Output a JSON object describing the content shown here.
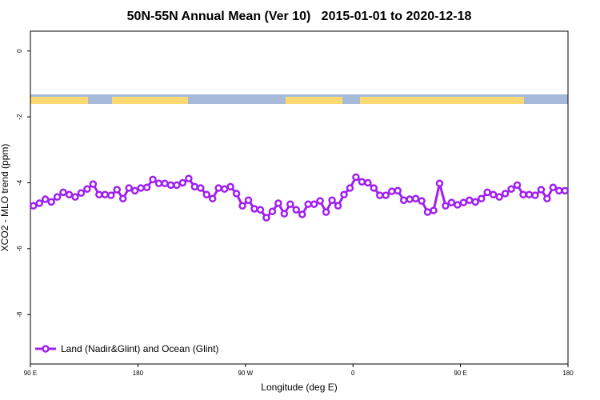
{
  "chart_data": {
    "type": "line",
    "title": "50N-55N Annual Mean (Ver 10)   2015-01-01 to 2020-12-18",
    "x_label": "Longitude (deg E)",
    "y_label": "XCO2 - MLO trend (ppm)",
    "xlim": [
      90,
      540
    ],
    "xticks": [
      {
        "value": 90,
        "label": "90 E"
      },
      {
        "value": 180,
        "label": "180"
      },
      {
        "value": 270,
        "label": "90 W"
      },
      {
        "value": 360,
        "label": "0"
      },
      {
        "value": 450,
        "label": "90 E"
      },
      {
        "value": 540,
        "label": "180"
      }
    ],
    "ylim": [
      -9.5,
      0.6
    ],
    "yticks": [
      0,
      -2,
      -4,
      -6,
      -8
    ],
    "legend": "bottom-left",
    "x": [
      92.5,
      97.5,
      102.5,
      107.5,
      112.5,
      117.5,
      122.5,
      127.5,
      132.5,
      137.5,
      142.5,
      147.5,
      152.5,
      157.5,
      162.5,
      167.5,
      172.5,
      177.5,
      182.5,
      187.5,
      192.5,
      197.5,
      202.5,
      207.5,
      212.5,
      217.5,
      222.5,
      227.5,
      232.5,
      237.5,
      242.5,
      247.5,
      252.5,
      257.5,
      262.5,
      267.5,
      272.5,
      277.5,
      282.5,
      287.5,
      292.5,
      297.5,
      302.5,
      307.5,
      312.5,
      317.5,
      322.5,
      327.5,
      332.5,
      337.5,
      342.5,
      347.5,
      352.5,
      357.5,
      362.5,
      367.5,
      372.5,
      377.5,
      382.5,
      387.5,
      392.5,
      397.5,
      402.5,
      407.5,
      412.5,
      417.5,
      422.5,
      427.5,
      432.5,
      437.5,
      442.5,
      447.5,
      452.5,
      457.5,
      462.5,
      467.5,
      472.5,
      477.5,
      482.5,
      487.5,
      492.5,
      497.5,
      502.5,
      507.5,
      512.5,
      517.5,
      522.5,
      527.5,
      532.5,
      537.5
    ],
    "series": [
      {
        "name": "Land (Nadir&Glint) and Ocean (Glint)",
        "color": "#a020f0",
        "values": [
          -4.7,
          -4.62,
          -4.5,
          -4.58,
          -4.43,
          -4.29,
          -4.36,
          -4.43,
          -4.31,
          -4.19,
          -4.04,
          -4.36,
          -4.36,
          -4.38,
          -4.21,
          -4.48,
          -4.16,
          -4.24,
          -4.16,
          -4.14,
          -3.9,
          -4.02,
          -4.02,
          -4.07,
          -4.07,
          -4.0,
          -3.87,
          -4.12,
          -4.16,
          -4.36,
          -4.48,
          -4.16,
          -4.19,
          -4.12,
          -4.33,
          -4.7,
          -4.53,
          -4.79,
          -4.82,
          -5.06,
          -4.87,
          -4.62,
          -4.94,
          -4.65,
          -4.82,
          -4.96,
          -4.65,
          -4.65,
          -4.55,
          -4.89,
          -4.53,
          -4.7,
          -4.36,
          -4.16,
          -3.83,
          -3.97,
          -4.0,
          -4.16,
          -4.38,
          -4.38,
          -4.26,
          -4.24,
          -4.53,
          -4.5,
          -4.48,
          -4.55,
          -4.89,
          -4.84,
          -4.02,
          -4.7,
          -4.6,
          -4.67,
          -4.6,
          -4.53,
          -4.58,
          -4.48,
          -4.29,
          -4.36,
          -4.43,
          -4.33,
          -4.19,
          -4.07,
          -4.36,
          -4.36,
          -4.38,
          -4.21,
          -4.48,
          -4.14,
          -4.24,
          -4.24
        ]
      }
    ]
  }
}
